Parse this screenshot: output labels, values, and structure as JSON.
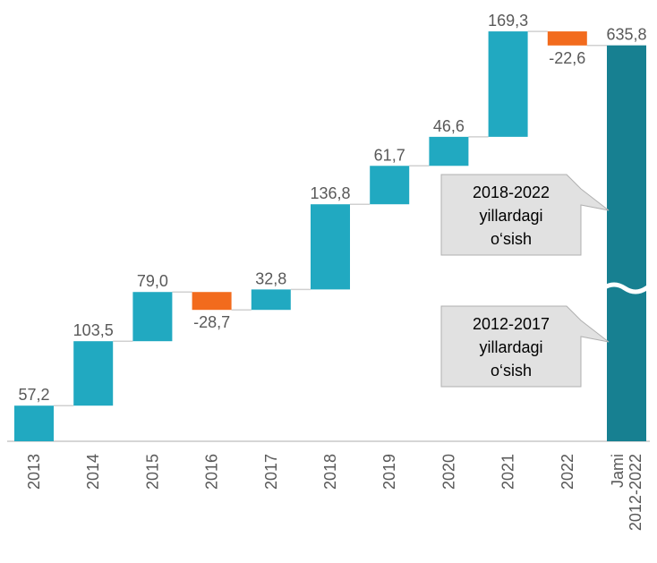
{
  "chart_data": {
    "type": "waterfall",
    "categories": [
      "2013",
      "2014",
      "2015",
      "2016",
      "2017",
      "2018",
      "2019",
      "2020",
      "2021",
      "2022",
      "Jami 2012-2022"
    ],
    "values": [
      57.2,
      103.5,
      79.0,
      -28.7,
      32.8,
      136.8,
      61.7,
      46.6,
      169.3,
      -22.6,
      635.8
    ],
    "value_labels": [
      "57,2",
      "103,5",
      "79,0",
      "-28,7",
      "32,8",
      "136,8",
      "61,7",
      "46,6",
      "169,3",
      "-22,6",
      "635,8"
    ],
    "colors": {
      "increase": "#21a9c1",
      "decrease": "#f26b1d",
      "total": "#178091"
    },
    "ylim": [
      0,
      700
    ],
    "annotations": [
      [
        "2018-2022",
        "yillardagi",
        "o‘sish"
      ],
      [
        "2012-2017",
        "yillardagi",
        "o‘sish"
      ]
    ]
  }
}
